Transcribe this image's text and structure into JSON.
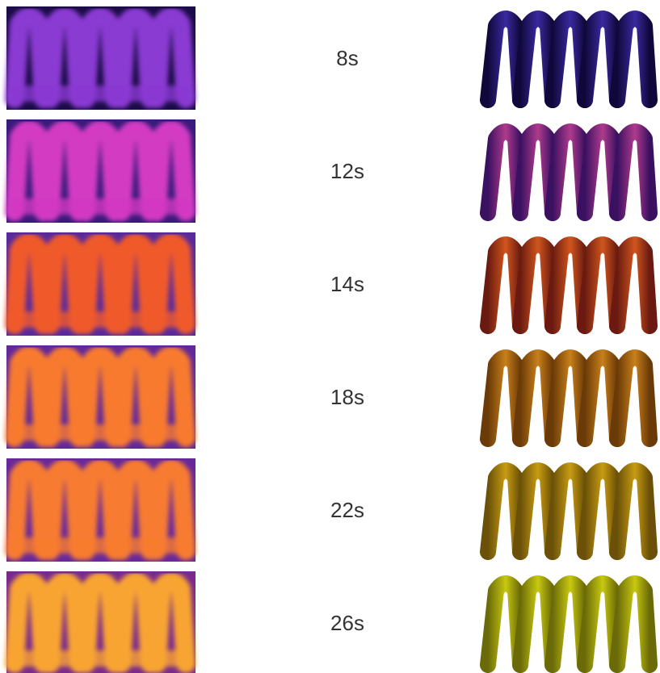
{
  "rows": [
    {
      "label": "8s"
    },
    {
      "label": "12s"
    },
    {
      "label": "14s"
    },
    {
      "label": "18s"
    },
    {
      "label": "22s"
    },
    {
      "label": "26s"
    }
  ]
}
